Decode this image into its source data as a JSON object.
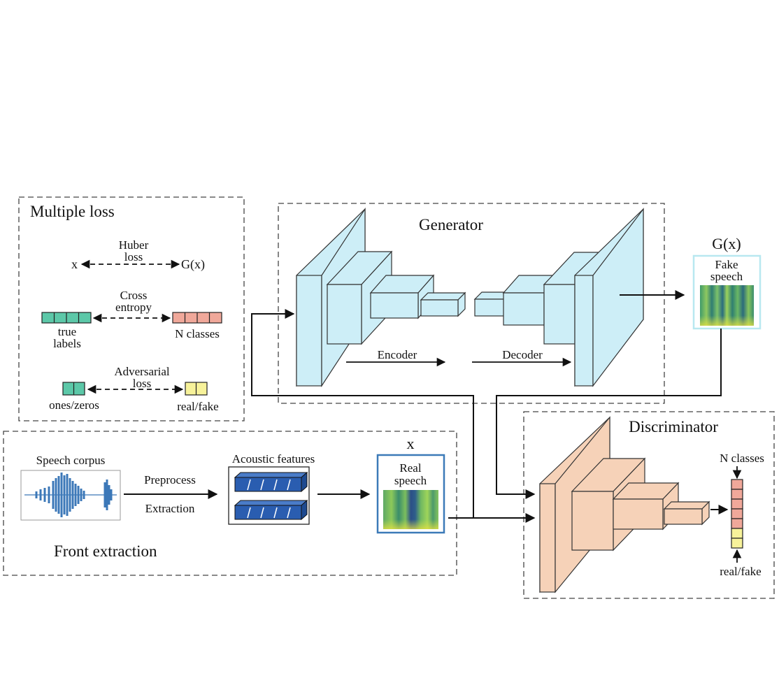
{
  "multiple_loss": {
    "title": "Multiple loss",
    "huber": {
      "left": "x",
      "right": "G(x)",
      "label_line1": "Huber",
      "label_line2": "loss"
    },
    "cross_entropy": {
      "label_line1": "Cross",
      "label_line2": "entropy",
      "left_line1": "true",
      "left_line2": "labels",
      "right": "N classes"
    },
    "adversarial": {
      "label_line1": "Adversarial",
      "label_line2": "loss",
      "left": "ones/zeros",
      "right": "real/fake"
    }
  },
  "generator": {
    "title": "Generator",
    "encoder": "Encoder",
    "decoder": "Decoder"
  },
  "output": {
    "symbol": "G(x)",
    "line1": "Fake",
    "line2": "speech"
  },
  "front_extraction": {
    "title": "Front extraction",
    "corpus": "Speech corpus",
    "preprocess": "Preprocess",
    "extraction": "Extraction",
    "features": "Acoustic features",
    "real_symbol": "x",
    "real_line1": "Real",
    "real_line2": "speech"
  },
  "discriminator": {
    "title": "Discriminator",
    "classes": "N classes",
    "realfake": "real/fake"
  },
  "colors": {
    "generator_block": "#cdeef7",
    "discriminator_block": "#f6d2b8",
    "teal": "#5cc8a8",
    "salmon": "#f0a89a",
    "yellow": "#f7f29a",
    "feature_blue": "#2a5db0",
    "box_border_blue": "#3c7ab8"
  }
}
